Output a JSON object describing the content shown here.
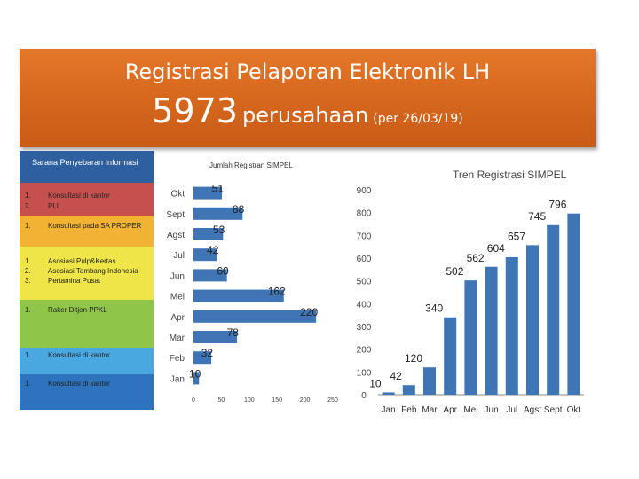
{
  "banner": {
    "title": "Registrasi Pelaporan Elektronik LH",
    "count": "5973",
    "unit": "perusahaan",
    "date_note": "(per 26/03/19)"
  },
  "sidebar": {
    "heading": "Sarana Penyebaran Informasi",
    "boxes": [
      {
        "color": "#c5504e",
        "items": [
          {
            "num": "1.",
            "text": "Konsultasi di kantor"
          },
          {
            "num": "2.",
            "text": "PLI"
          }
        ]
      },
      {
        "color": "#f2b234",
        "items": [
          {
            "num": "1.",
            "text": "Konsultasi pada SA PROPER"
          }
        ]
      },
      {
        "color": "#f0e548",
        "items": [
          {
            "num": "1.",
            "text": "Asosiasi Pulp&Kertas"
          },
          {
            "num": "2.",
            "text": "Asosiasi Tambang Indonesia"
          },
          {
            "num": "3.",
            "text": "Pertamina Pusat"
          }
        ]
      },
      {
        "color": "#8fc64a",
        "items": [
          {
            "num": "1.",
            "text": "Raker Ditjen PPKL"
          }
        ]
      },
      {
        "color": "#4aa8e0",
        "items": [
          {
            "num": "1.",
            "text": "Konsultasi di kantor"
          }
        ]
      },
      {
        "color": "#2d73bd",
        "items": [
          {
            "num": "1.",
            "text": "Konsultasi di kantor"
          }
        ]
      }
    ]
  },
  "chart_data": [
    {
      "type": "bar",
      "orientation": "horizontal",
      "title": "Jumlah Registran SIMPEL",
      "categories": [
        "Okt",
        "Sept",
        "Agst",
        "Jul",
        "Jun",
        "Mei",
        "Apr",
        "Mar",
        "Feb",
        "Jan"
      ],
      "values": [
        51,
        88,
        53,
        42,
        60,
        162,
        220,
        78,
        32,
        10
      ],
      "xlim": [
        0,
        250
      ],
      "xticks": [
        "0",
        "50",
        "100",
        "150",
        "200",
        "250"
      ],
      "color": "#3f74b5"
    },
    {
      "type": "bar",
      "title": "Tren Registrasi SIMPEL",
      "categories": [
        "Jan",
        "Feb",
        "Mar",
        "Apr",
        "Mei",
        "Jun",
        "Jul",
        "Agst",
        "Sept",
        "Okt"
      ],
      "values": [
        10,
        42,
        120,
        340,
        502,
        562,
        604,
        657,
        745,
        796
      ],
      "ylim": [
        0,
        900
      ],
      "yticks": [
        "0",
        "100",
        "200",
        "300",
        "400",
        "500",
        "600",
        "700",
        "800",
        "900"
      ],
      "color": "#3f74b5"
    }
  ]
}
